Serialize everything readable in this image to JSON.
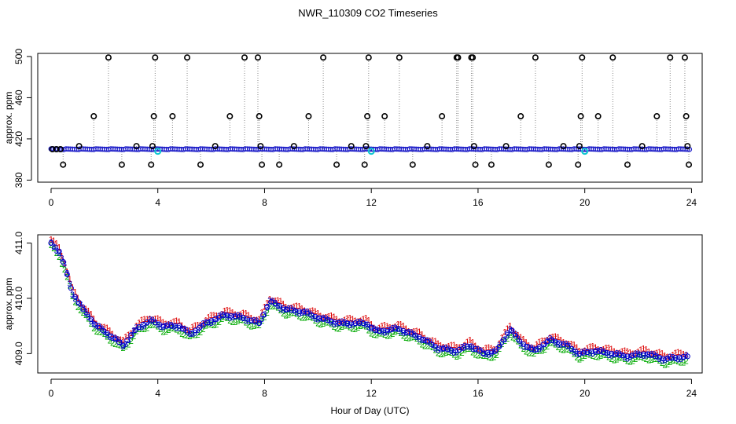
{
  "title": "NWR_110309  CO2 Timeseries",
  "chart_data": [
    {
      "type": "scatter",
      "panel": "top",
      "title": "NWR_110309  CO2 Timeseries",
      "xlabel": "",
      "ylabel": "approx. ppm",
      "xlim": [
        -0.5,
        24.4
      ],
      "ylim": [
        378,
        503
      ],
      "xticks": [
        0,
        4,
        8,
        12,
        16,
        20,
        24
      ],
      "yticks": [
        380,
        420,
        460,
        500
      ],
      "baseline_ppm": 410.0,
      "spikes": [
        {
          "x": 0.45,
          "y": 395
        },
        {
          "x": 1.05,
          "y": 413
        },
        {
          "x": 1.6,
          "y": 442
        },
        {
          "x": 2.15,
          "y": 499
        },
        {
          "x": 2.65,
          "y": 395
        },
        {
          "x": 3.2,
          "y": 413
        },
        {
          "x": 3.75,
          "y": 395
        },
        {
          "x": 3.8,
          "y": 413
        },
        {
          "x": 3.85,
          "y": 442
        },
        {
          "x": 3.9,
          "y": 499
        },
        {
          "x": 4.55,
          "y": 442
        },
        {
          "x": 5.1,
          "y": 499
        },
        {
          "x": 5.6,
          "y": 395
        },
        {
          "x": 6.15,
          "y": 413
        },
        {
          "x": 6.7,
          "y": 442
        },
        {
          "x": 7.25,
          "y": 499
        },
        {
          "x": 7.75,
          "y": 499
        },
        {
          "x": 7.8,
          "y": 442
        },
        {
          "x": 7.85,
          "y": 413
        },
        {
          "x": 7.9,
          "y": 395
        },
        {
          "x": 8.55,
          "y": 395
        },
        {
          "x": 9.1,
          "y": 413
        },
        {
          "x": 9.65,
          "y": 442
        },
        {
          "x": 10.2,
          "y": 499
        },
        {
          "x": 10.7,
          "y": 395
        },
        {
          "x": 11.25,
          "y": 413
        },
        {
          "x": 11.75,
          "y": 395
        },
        {
          "x": 11.8,
          "y": 413
        },
        {
          "x": 11.85,
          "y": 442
        },
        {
          "x": 11.9,
          "y": 499
        },
        {
          "x": 12.5,
          "y": 442
        },
        {
          "x": 13.05,
          "y": 499
        },
        {
          "x": 13.55,
          "y": 395
        },
        {
          "x": 14.1,
          "y": 413
        },
        {
          "x": 14.65,
          "y": 442
        },
        {
          "x": 15.2,
          "y": 499
        },
        {
          "x": 15.25,
          "y": 499
        },
        {
          "x": 15.75,
          "y": 499
        },
        {
          "x": 15.8,
          "y": 499
        },
        {
          "x": 15.85,
          "y": 413
        },
        {
          "x": 15.9,
          "y": 395
        },
        {
          "x": 16.5,
          "y": 395
        },
        {
          "x": 17.05,
          "y": 413
        },
        {
          "x": 17.6,
          "y": 442
        },
        {
          "x": 18.15,
          "y": 499
        },
        {
          "x": 18.65,
          "y": 395
        },
        {
          "x": 19.2,
          "y": 413
        },
        {
          "x": 19.75,
          "y": 395
        },
        {
          "x": 19.8,
          "y": 413
        },
        {
          "x": 19.85,
          "y": 442
        },
        {
          "x": 19.9,
          "y": 499
        },
        {
          "x": 20.5,
          "y": 442
        },
        {
          "x": 21.05,
          "y": 499
        },
        {
          "x": 21.6,
          "y": 395
        },
        {
          "x": 22.15,
          "y": 413
        },
        {
          "x": 22.7,
          "y": 442
        },
        {
          "x": 23.2,
          "y": 499
        },
        {
          "x": 23.75,
          "y": 499
        },
        {
          "x": 23.8,
          "y": 442
        },
        {
          "x": 23.85,
          "y": 413
        },
        {
          "x": 23.9,
          "y": 395
        }
      ],
      "highlights": [
        {
          "x": 4.0,
          "y": 408
        },
        {
          "x": 12.0,
          "y": 408
        },
        {
          "x": 20.0,
          "y": 408
        }
      ]
    },
    {
      "type": "line",
      "panel": "bottom",
      "xlabel": "Hour of Day (UTC)",
      "ylabel": "approx. ppm",
      "xlim": [
        -0.5,
        24.4
      ],
      "ylim": [
        408.65,
        411.15
      ],
      "xticks": [
        0,
        4,
        8,
        12,
        16,
        20,
        24
      ],
      "yticks": [
        409.0,
        410.0,
        411.0
      ],
      "ytick_labels": [
        "409.0",
        "410.0",
        "411.0"
      ],
      "point_markers": [
        "1",
        "2",
        "3"
      ],
      "series_colors": [
        "#dd0000",
        "#00aa00",
        "#0000cc"
      ],
      "keypoints": [
        {
          "x": 0.0,
          "y": 411.0
        },
        {
          "x": 0.3,
          "y": 410.85
        },
        {
          "x": 0.5,
          "y": 410.6
        },
        {
          "x": 0.8,
          "y": 410.1
        },
        {
          "x": 1.2,
          "y": 409.8
        },
        {
          "x": 1.7,
          "y": 409.5
        },
        {
          "x": 2.3,
          "y": 409.3
        },
        {
          "x": 2.7,
          "y": 409.15
        },
        {
          "x": 3.2,
          "y": 409.45
        },
        {
          "x": 3.7,
          "y": 409.6
        },
        {
          "x": 4.2,
          "y": 409.5
        },
        {
          "x": 4.8,
          "y": 409.5
        },
        {
          "x": 5.2,
          "y": 409.35
        },
        {
          "x": 5.8,
          "y": 409.55
        },
        {
          "x": 6.5,
          "y": 409.7
        },
        {
          "x": 7.2,
          "y": 409.65
        },
        {
          "x": 7.8,
          "y": 409.55
        },
        {
          "x": 8.2,
          "y": 409.95
        },
        {
          "x": 8.8,
          "y": 409.8
        },
        {
          "x": 9.5,
          "y": 409.75
        },
        {
          "x": 10.0,
          "y": 409.65
        },
        {
          "x": 10.8,
          "y": 409.55
        },
        {
          "x": 11.8,
          "y": 409.55
        },
        {
          "x": 12.2,
          "y": 409.4
        },
        {
          "x": 13.0,
          "y": 409.45
        },
        {
          "x": 13.8,
          "y": 409.3
        },
        {
          "x": 14.5,
          "y": 409.1
        },
        {
          "x": 15.2,
          "y": 409.05
        },
        {
          "x": 15.7,
          "y": 409.15
        },
        {
          "x": 16.2,
          "y": 409.0
        },
        {
          "x": 16.7,
          "y": 409.05
        },
        {
          "x": 17.2,
          "y": 409.45
        },
        {
          "x": 17.6,
          "y": 409.2
        },
        {
          "x": 18.1,
          "y": 409.05
        },
        {
          "x": 18.7,
          "y": 409.25
        },
        {
          "x": 19.3,
          "y": 409.15
        },
        {
          "x": 19.8,
          "y": 409.0
        },
        {
          "x": 20.4,
          "y": 409.05
        },
        {
          "x": 21.0,
          "y": 409.0
        },
        {
          "x": 21.6,
          "y": 408.95
        },
        {
          "x": 22.3,
          "y": 409.0
        },
        {
          "x": 23.0,
          "y": 408.9
        },
        {
          "x": 23.8,
          "y": 408.95
        }
      ],
      "sample_step_hours": 0.1,
      "series_offsets": {
        "1": 0.07,
        "2": -0.07,
        "3": 0.0
      }
    }
  ]
}
